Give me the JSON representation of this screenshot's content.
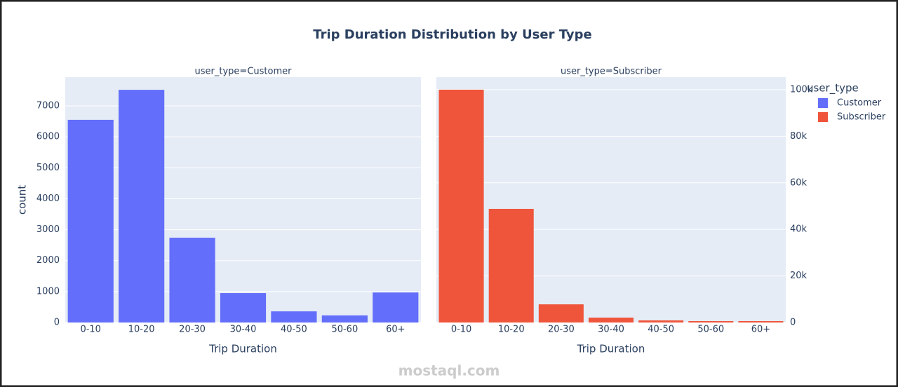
{
  "title": "Trip Duration Distribution by User Type",
  "legend_title": "user_type",
  "watermark": "mostaql.com",
  "chart_data": [
    {
      "type": "bar",
      "subtitle": "user_type=Customer",
      "xlabel": "Trip Duration",
      "ylabel": "count",
      "categories": [
        "0-10",
        "10-20",
        "20-30",
        "30-40",
        "40-50",
        "50-60",
        "60+"
      ],
      "series": [
        {
          "name": "Customer",
          "color": "#636efa",
          "values": [
            6550,
            7520,
            2740,
            950,
            360,
            230,
            970
          ]
        }
      ],
      "ylim": [
        0,
        7930
      ],
      "yticks": [
        0,
        1000,
        2000,
        3000,
        4000,
        5000,
        6000,
        7000
      ],
      "yaxis_side": "left",
      "grid": true
    },
    {
      "type": "bar",
      "subtitle": "user_type=Subscriber",
      "xlabel": "Trip Duration",
      "categories": [
        "0-10",
        "10-20",
        "20-30",
        "30-40",
        "40-50",
        "50-60",
        "60+"
      ],
      "series": [
        {
          "name": "Subscriber",
          "color": "#ef553b",
          "values": [
            100000,
            48800,
            7800,
            2100,
            900,
            600,
            600
          ]
        }
      ],
      "ylim": [
        0,
        105400
      ],
      "yticks": [
        0,
        {
          "value": 20000,
          "label": "20k"
        },
        {
          "value": 40000,
          "label": "40k"
        },
        {
          "value": 60000,
          "label": "60k"
        },
        {
          "value": 80000,
          "label": "80k"
        },
        {
          "value": 100000,
          "label": "100k"
        }
      ],
      "yaxis_side": "right",
      "grid": true
    }
  ]
}
